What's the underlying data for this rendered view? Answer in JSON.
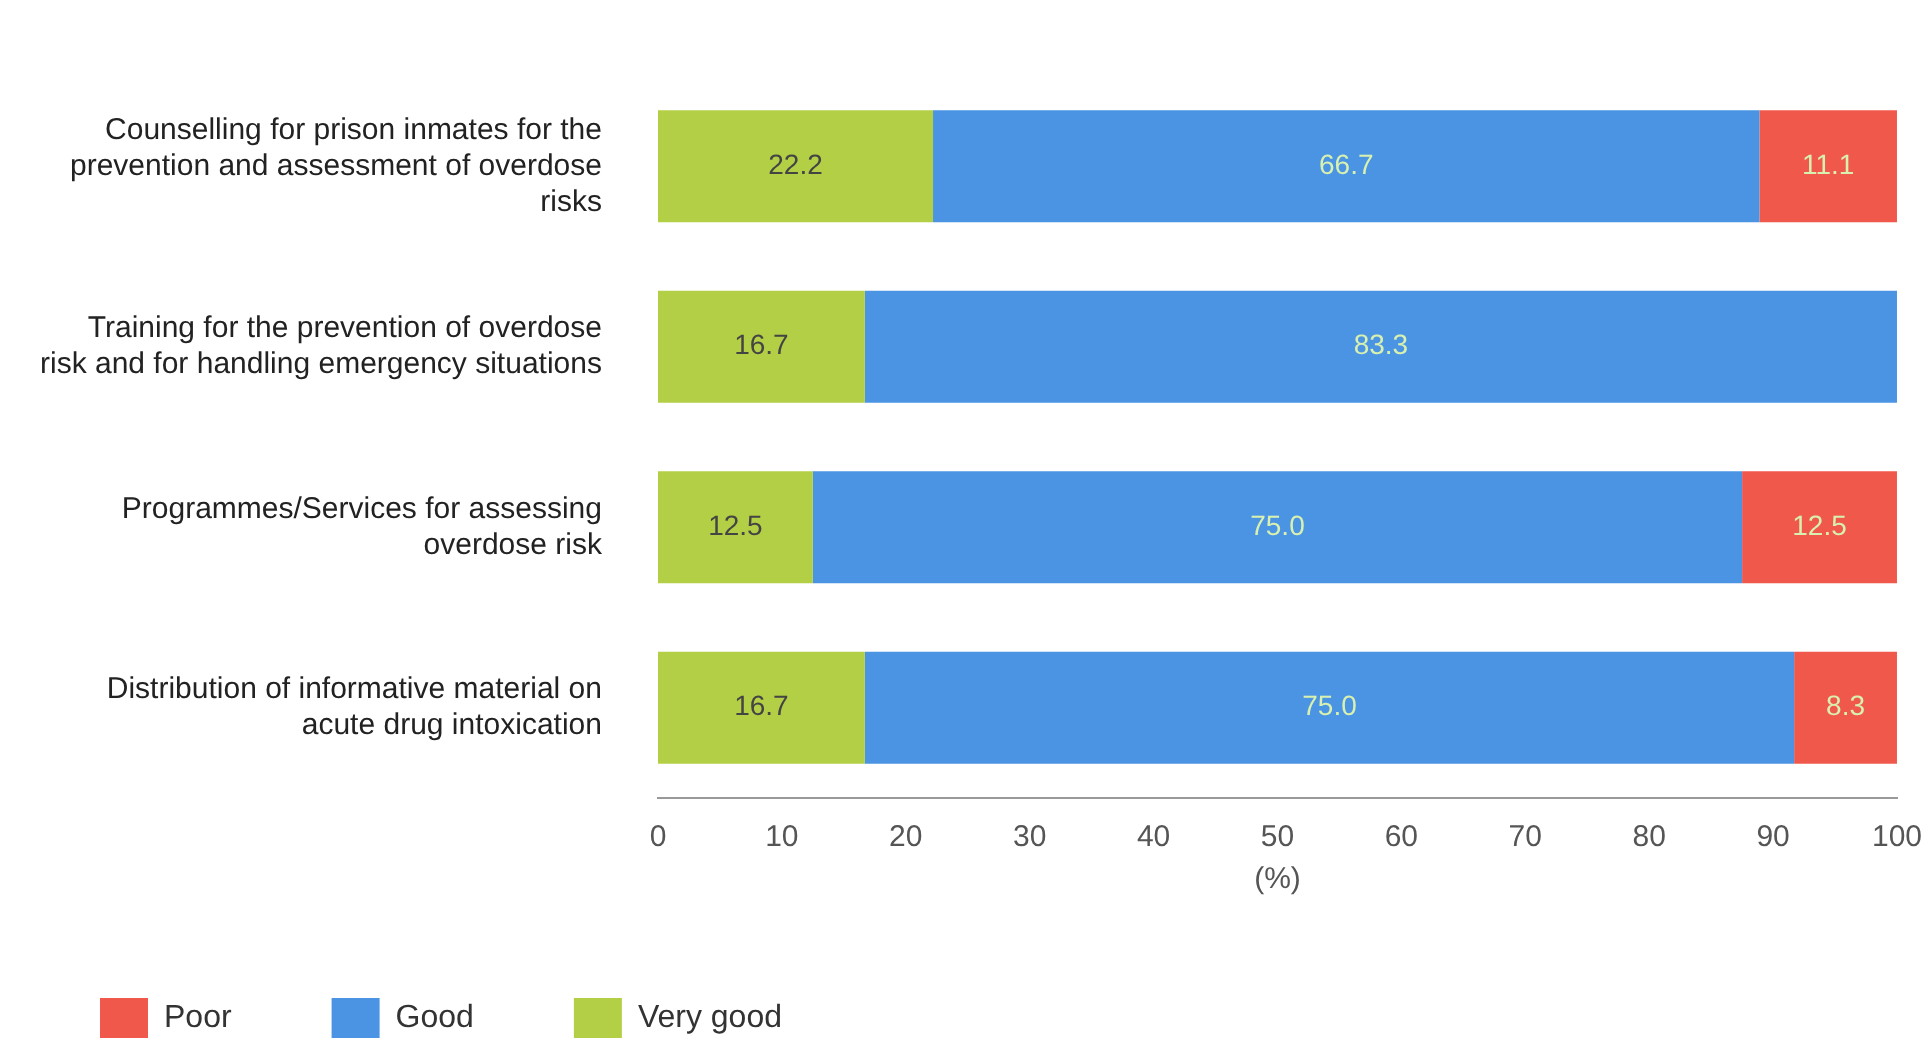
{
  "chart_data": {
    "type": "bar",
    "orientation": "horizontal",
    "stacked": true,
    "xlabel": "(%)",
    "categories": [
      "Counselling for prison inmates for the prevention and assessment of overdose risks",
      "Training for the prevention of overdose risk and for handling emergency situations",
      "Programmes/Services for assessing overdose risk",
      "Distribution of informative material on acute drug intoxication"
    ],
    "series": [
      {
        "name": "Very good",
        "color": "#b3cf45",
        "values": [
          22.2,
          16.7,
          12.5,
          16.7
        ],
        "value_labels": [
          "22.2",
          "16.7",
          "12.5",
          "16.7"
        ]
      },
      {
        "name": "Good",
        "color": "#4a94e3",
        "values": [
          66.7,
          83.3,
          75.0,
          75.0
        ],
        "value_labels": [
          "66.7",
          "83.3",
          "75.0",
          "75.0"
        ]
      },
      {
        "name": "Poor",
        "color": "#f0584c",
        "values": [
          11.1,
          null,
          12.5,
          8.3
        ],
        "value_labels": [
          "11.1",
          null,
          "12.5",
          "8.3"
        ]
      }
    ],
    "xlim": [
      0,
      100
    ],
    "xticks": [
      0,
      10,
      20,
      30,
      40,
      50,
      60,
      70,
      80,
      90,
      100
    ],
    "legend": "bottom left"
  }
}
